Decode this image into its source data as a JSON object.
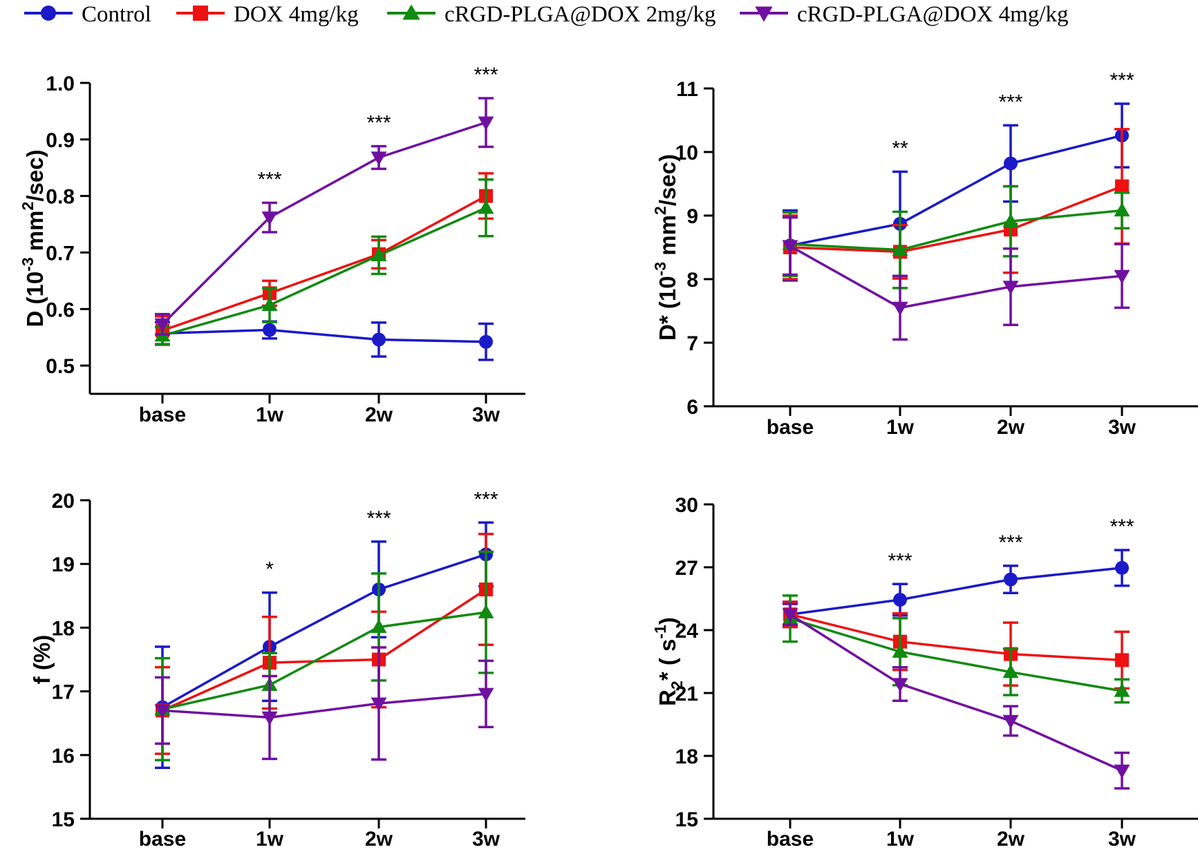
{
  "legend": [
    {
      "name": "Control",
      "color": "#1a1ac8",
      "marker": "circle"
    },
    {
      "name": "DOX 4mg/kg",
      "color": "#ee1111",
      "marker": "square"
    },
    {
      "name": "cRGD-PLGA@DOX 2mg/kg",
      "color": "#108a10",
      "marker": "triangle-up"
    },
    {
      "name": "cRGD-PLGA@DOX 4mg/kg",
      "color": "#7010a0",
      "marker": "triangle-down"
    }
  ],
  "chart_data": [
    {
      "type": "line",
      "id": "D",
      "ylabel_main": "D (10",
      "ylabel_sup1": "-3",
      "ylabel_mid": " mm",
      "ylabel_sup2": "2",
      "ylabel_end": "/sec)",
      "categories": [
        "base",
        "1w",
        "2w",
        "3w"
      ],
      "ylim": [
        0.45,
        1.0
      ],
      "yticks": [
        0.5,
        0.6,
        0.7,
        0.8,
        0.9,
        1.0
      ],
      "ytick_labels": [
        "0.5",
        "0.6",
        "0.7",
        "0.8",
        "0.9",
        "1.0"
      ],
      "significance": [
        "",
        "***",
        "***",
        "***"
      ],
      "series": [
        {
          "name": "Control",
          "values": [
            0.557,
            0.563,
            0.546,
            0.542
          ],
          "errors": [
            0.02,
            0.015,
            0.03,
            0.032
          ]
        },
        {
          "name": "DOX 4mg/kg",
          "values": [
            0.562,
            0.628,
            0.697,
            0.8
          ],
          "errors": [
            0.025,
            0.022,
            0.025,
            0.04
          ]
        },
        {
          "name": "cRGD-PLGA@DOX 2mg/kg",
          "values": [
            0.553,
            0.607,
            0.695,
            0.779
          ],
          "errors": [
            0.015,
            0.03,
            0.033,
            0.05
          ]
        },
        {
          "name": "cRGD-PLGA@DOX 4mg/kg",
          "values": [
            0.573,
            0.762,
            0.868,
            0.93
          ],
          "errors": [
            0.018,
            0.026,
            0.02,
            0.043
          ]
        }
      ]
    },
    {
      "type": "line",
      "id": "Dstar",
      "ylabel_main": "D* (10",
      "ylabel_sup1": "-3",
      "ylabel_mid": " mm",
      "ylabel_sup2": "2",
      "ylabel_end": "/sec)",
      "categories": [
        "base",
        "1w",
        "2w",
        "3w"
      ],
      "ylim": [
        6,
        11
      ],
      "yticks": [
        6,
        7,
        8,
        9,
        10,
        11
      ],
      "ytick_labels": [
        "6",
        "7",
        "8",
        "9",
        "10",
        "11"
      ],
      "significance": [
        "",
        "**",
        "***",
        "***"
      ],
      "series": [
        {
          "name": "Control",
          "values": [
            8.53,
            8.87,
            9.82,
            10.26
          ],
          "errors": [
            0.55,
            0.82,
            0.6,
            0.5
          ]
        },
        {
          "name": "DOX 4mg/kg",
          "values": [
            8.5,
            8.43,
            8.78,
            9.46
          ],
          "errors": [
            0.5,
            0.42,
            0.68,
            0.9
          ]
        },
        {
          "name": "cRGD-PLGA@DOX 2mg/kg",
          "values": [
            8.55,
            8.46,
            8.91,
            9.08
          ],
          "errors": [
            0.5,
            0.6,
            0.55,
            0.28
          ]
        },
        {
          "name": "cRGD-PLGA@DOX 4mg/kg",
          "values": [
            8.52,
            7.55,
            7.88,
            8.05
          ],
          "errors": [
            0.45,
            0.5,
            0.6,
            0.5
          ]
        }
      ]
    },
    {
      "type": "line",
      "id": "f",
      "ylabel_main": "f (%)",
      "ylabel_sup1": "",
      "ylabel_mid": "",
      "ylabel_sup2": "",
      "ylabel_end": "",
      "categories": [
        "base",
        "1w",
        "2w",
        "3w"
      ],
      "ylim": [
        15,
        20
      ],
      "yticks": [
        15,
        16,
        17,
        18,
        19,
        20
      ],
      "ytick_labels": [
        "15",
        "16",
        "17",
        "18",
        "19",
        "20"
      ],
      "significance": [
        "",
        "*",
        "***",
        "***"
      ],
      "series": [
        {
          "name": "Control",
          "values": [
            16.75,
            17.7,
            18.6,
            19.15
          ],
          "errors": [
            0.95,
            0.85,
            0.75,
            0.5
          ]
        },
        {
          "name": "DOX 4mg/kg",
          "values": [
            16.7,
            17.45,
            17.5,
            18.6
          ],
          "errors": [
            0.68,
            0.72,
            0.75,
            0.87
          ]
        },
        {
          "name": "cRGD-PLGA@DOX 2mg/kg",
          "values": [
            16.72,
            17.1,
            18.01,
            18.24
          ],
          "errors": [
            0.8,
            0.5,
            0.84,
            0.95
          ]
        },
        {
          "name": "cRGD-PLGA@DOX 4mg/kg",
          "values": [
            16.7,
            16.59,
            16.81,
            16.96
          ],
          "errors": [
            0.52,
            0.65,
            0.88,
            0.52
          ]
        }
      ]
    },
    {
      "type": "line",
      "id": "R2star",
      "ylabel_main": "R",
      "ylabel_sup1": "",
      "ylabel_sub": "2",
      "ylabel_mid": "* ( s",
      "ylabel_sup2": "-1",
      "ylabel_end": ")",
      "categories": [
        "base",
        "1w",
        "2w",
        "3w"
      ],
      "ylim": [
        15,
        30
      ],
      "yticks": [
        15,
        18,
        21,
        24,
        27,
        30
      ],
      "ytick_labels": [
        "15",
        "18",
        "21",
        "24",
        "27",
        "30"
      ],
      "significance": [
        "",
        "***",
        "***",
        "***"
      ],
      "series": [
        {
          "name": "Control",
          "values": [
            24.75,
            25.45,
            26.42,
            26.97
          ],
          "errors": [
            0.6,
            0.75,
            0.65,
            0.85
          ]
        },
        {
          "name": "DOX 4mg/kg",
          "values": [
            24.75,
            23.45,
            22.86,
            22.57
          ],
          "errors": [
            0.6,
            1.35,
            1.5,
            1.35
          ]
        },
        {
          "name": "cRGD-PLGA@DOX 2mg/kg",
          "values": [
            24.55,
            22.97,
            22.0,
            21.1
          ],
          "errors": [
            1.1,
            1.6,
            1.1,
            0.55
          ]
        },
        {
          "name": "cRGD-PLGA@DOX 4mg/kg",
          "values": [
            24.75,
            21.43,
            19.67,
            17.3
          ],
          "errors": [
            0.5,
            0.8,
            0.7,
            0.85
          ]
        }
      ]
    }
  ]
}
